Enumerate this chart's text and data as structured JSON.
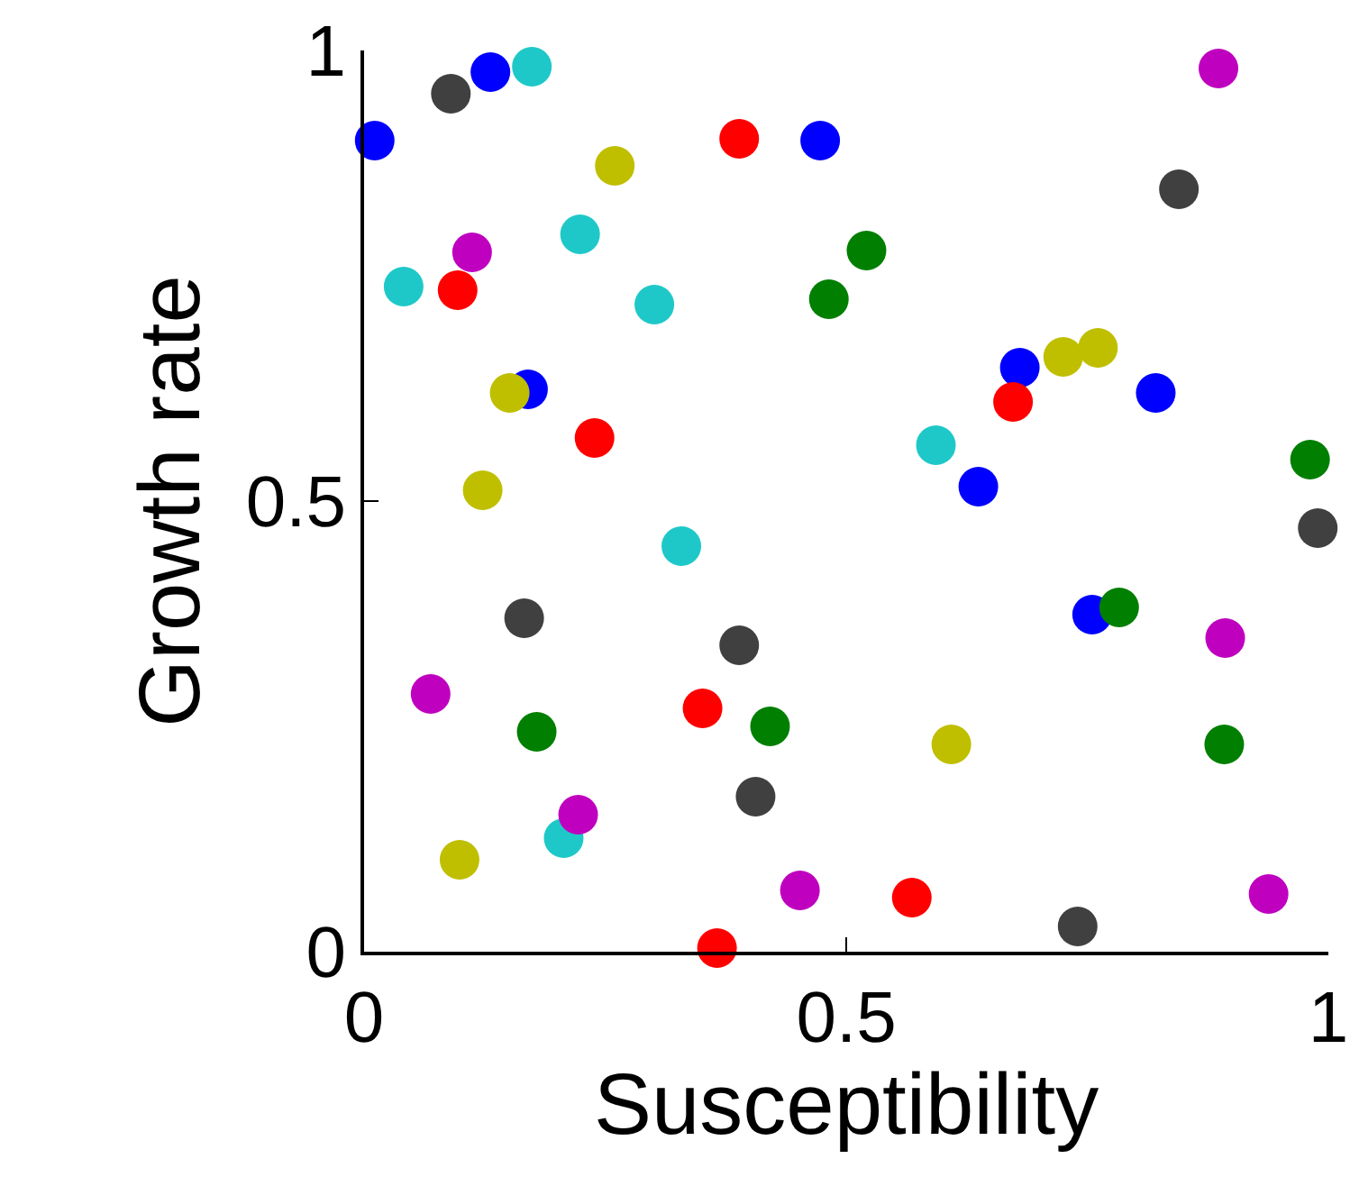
{
  "chart_data": {
    "type": "scatter",
    "xlabel": "Susceptibility",
    "ylabel": "Growth rate",
    "xlim": [
      0,
      1
    ],
    "ylim": [
      0,
      1
    ],
    "xticks": [
      0,
      0.5,
      1
    ],
    "yticks": [
      0,
      0.5,
      1
    ],
    "grid": false,
    "marker": "circle",
    "series": [
      {
        "color": "#0000ff",
        "x": [
          0.011,
          0.131,
          0.473,
          0.17,
          0.68,
          0.637,
          0.821,
          0.755
        ],
        "values": [
          0.9,
          0.976,
          0.9,
          0.624,
          0.648,
          0.516,
          0.62,
          0.374
        ]
      },
      {
        "color": "#1fc8c8",
        "x": [
          0.174,
          0.224,
          0.041,
          0.301,
          0.329,
          0.593,
          0.207
        ],
        "values": [
          0.982,
          0.796,
          0.738,
          0.718,
          0.45,
          0.562,
          0.126
        ]
      },
      {
        "color": "#ff0000",
        "x": [
          0.389,
          0.097,
          0.239,
          0.673,
          0.351,
          0.568,
          0.366
        ],
        "values": [
          0.902,
          0.734,
          0.57,
          0.61,
          0.27,
          0.06,
          0.004
        ]
      },
      {
        "color": "#007f00",
        "x": [
          0.521,
          0.482,
          0.981,
          0.783,
          0.179,
          0.421,
          0.892
        ],
        "values": [
          0.778,
          0.724,
          0.546,
          0.382,
          0.244,
          0.25,
          0.23
        ]
      },
      {
        "color": "#404040",
        "x": [
          0.09,
          0.845,
          0.989,
          0.166,
          0.389,
          0.406,
          0.74
        ],
        "values": [
          0.952,
          0.846,
          0.47,
          0.37,
          0.34,
          0.172,
          0.028
        ]
      },
      {
        "color": "#bf00bf",
        "x": [
          0.886,
          0.112,
          0.069,
          0.222,
          0.893,
          0.452,
          0.938
        ],
        "values": [
          0.98,
          0.776,
          0.286,
          0.152,
          0.348,
          0.068,
          0.064
        ]
      },
      {
        "color": "#bfbf00",
        "x": [
          0.26,
          0.151,
          0.123,
          0.725,
          0.761,
          0.609,
          0.099
        ],
        "values": [
          0.872,
          0.62,
          0.512,
          0.66,
          0.67,
          0.23,
          0.102
        ]
      }
    ]
  }
}
